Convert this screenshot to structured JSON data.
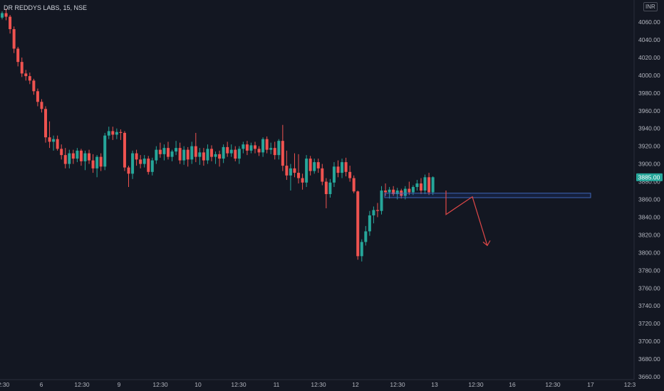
{
  "header": {
    "symbol": "DR REDDYS LABS",
    "interval": "15",
    "exchange": "NSE",
    "title": "DR REDDYS LABS, 15, NSE",
    "currency": "INR"
  },
  "colors": {
    "background": "#131722",
    "up": "#26a69a",
    "down": "#ef5350",
    "axis_text": "#b2b5be",
    "zone_border": "#3f64b8",
    "arrow": "#e04848"
  },
  "chart_data": {
    "type": "candlestick",
    "interval": "15",
    "yaxis": {
      "ticks": [
        3660,
        3680,
        3700,
        3720,
        3740,
        3760,
        3780,
        3800,
        3820,
        3840,
        3860,
        3880,
        3900,
        3920,
        3940,
        3960,
        3980,
        4000,
        4020,
        4040,
        4060
      ],
      "ylim": [
        3657,
        4082
      ]
    },
    "xaxis": {
      "tick_labels": [
        "2:30",
        "6",
        "12:30",
        "9",
        "12:30",
        "10",
        "12:30",
        "11",
        "12:30",
        "12",
        "12:30",
        "13",
        "12:30",
        "16",
        "12:30",
        "17",
        "12:3"
      ]
    },
    "last_price": {
      "label": "3885.00",
      "value": 3885
    },
    "support_zone": {
      "from": 3862,
      "to": 3867
    },
    "projection_path": [
      3870,
      3843,
      3863,
      3808
    ],
    "candles": [
      [
        4065,
        4072,
        4063,
        4070
      ],
      [
        4070,
        4075,
        4062,
        4066
      ],
      [
        4066,
        4068,
        4047,
        4052
      ],
      [
        4052,
        4055,
        4025,
        4030
      ],
      [
        4030,
        4032,
        4010,
        4015
      ],
      [
        4015,
        4020,
        3998,
        4002
      ],
      [
        4002,
        4006,
        3994,
        3999
      ],
      [
        3999,
        4003,
        3990,
        3994
      ],
      [
        3994,
        3996,
        3978,
        3982
      ],
      [
        3982,
        3985,
        3965,
        3970
      ],
      [
        3970,
        3973,
        3958,
        3962
      ],
      [
        3962,
        3965,
        3924,
        3930
      ],
      [
        3930,
        3948,
        3918,
        3925
      ],
      [
        3925,
        3932,
        3915,
        3928
      ],
      [
        3928,
        3932,
        3915,
        3917
      ],
      [
        3917,
        3922,
        3905,
        3910
      ],
      [
        3910,
        3918,
        3895,
        3900
      ],
      [
        3900,
        3916,
        3895,
        3912
      ],
      [
        3912,
        3916,
        3900,
        3906
      ],
      [
        3906,
        3918,
        3902,
        3915
      ],
      [
        3915,
        3917,
        3898,
        3903
      ],
      [
        3903,
        3915,
        3893,
        3912
      ],
      [
        3912,
        3916,
        3900,
        3904
      ],
      [
        3904,
        3911,
        3890,
        3895
      ],
      [
        3895,
        3910,
        3885,
        3908
      ],
      [
        3908,
        3912,
        3892,
        3897
      ],
      [
        3897,
        3935,
        3893,
        3932
      ],
      [
        3932,
        3942,
        3928,
        3937
      ],
      [
        3937,
        3942,
        3927,
        3933
      ],
      [
        3933,
        3940,
        3928,
        3936
      ],
      [
        3936,
        3939,
        3927,
        3935
      ],
      [
        3935,
        3937,
        3892,
        3896
      ],
      [
        3896,
        3898,
        3874,
        3889
      ],
      [
        3889,
        3915,
        3883,
        3912
      ],
      [
        3912,
        3916,
        3898,
        3905
      ],
      [
        3905,
        3910,
        3895,
        3900
      ],
      [
        3900,
        3910,
        3896,
        3906
      ],
      [
        3906,
        3909,
        3888,
        3891
      ],
      [
        3891,
        3907,
        3887,
        3904
      ],
      [
        3904,
        3920,
        3900,
        3916
      ],
      [
        3916,
        3924,
        3907,
        3911
      ],
      [
        3911,
        3922,
        3904,
        3918
      ],
      [
        3918,
        3925,
        3905,
        3908
      ],
      [
        3908,
        3916,
        3903,
        3914
      ],
      [
        3914,
        3926,
        3910,
        3918
      ],
      [
        3918,
        3924,
        3900,
        3904
      ],
      [
        3904,
        3920,
        3899,
        3916
      ],
      [
        3916,
        3919,
        3897,
        3905
      ],
      [
        3905,
        3925,
        3900,
        3920
      ],
      [
        3920,
        3935,
        3902,
        3908
      ],
      [
        3908,
        3918,
        3899,
        3913
      ],
      [
        3913,
        3918,
        3898,
        3904
      ],
      [
        3904,
        3922,
        3900,
        3917
      ],
      [
        3917,
        3921,
        3903,
        3908
      ],
      [
        3908,
        3914,
        3900,
        3911
      ],
      [
        3911,
        3915,
        3897,
        3906
      ],
      [
        3906,
        3922,
        3901,
        3919
      ],
      [
        3919,
        3925,
        3908,
        3912
      ],
      [
        3912,
        3922,
        3908,
        3916
      ],
      [
        3916,
        3920,
        3903,
        3906
      ],
      [
        3906,
        3920,
        3900,
        3917
      ],
      [
        3917,
        3925,
        3912,
        3922
      ],
      [
        3922,
        3926,
        3910,
        3915
      ],
      [
        3915,
        3924,
        3912,
        3921
      ],
      [
        3921,
        3925,
        3912,
        3917
      ],
      [
        3917,
        3920,
        3909,
        3913
      ],
      [
        3913,
        3930,
        3908,
        3928
      ],
      [
        3928,
        3931,
        3912,
        3916
      ],
      [
        3916,
        3924,
        3911,
        3918
      ],
      [
        3918,
        3925,
        3905,
        3910
      ],
      [
        3910,
        3928,
        3905,
        3926
      ],
      [
        3926,
        3944,
        3892,
        3898
      ],
      [
        3898,
        3915,
        3882,
        3887
      ],
      [
        3887,
        3900,
        3870,
        3895
      ],
      [
        3895,
        3912,
        3885,
        3890
      ],
      [
        3890,
        3911,
        3878,
        3884
      ],
      [
        3884,
        3889,
        3871,
        3879
      ],
      [
        3879,
        3910,
        3874,
        3906
      ],
      [
        3906,
        3909,
        3887,
        3892
      ],
      [
        3892,
        3906,
        3889,
        3902
      ],
      [
        3902,
        3906,
        3890,
        3895
      ],
      [
        3895,
        3900,
        3876,
        3880
      ],
      [
        3880,
        3884,
        3850,
        3866
      ],
      [
        3866,
        3883,
        3862,
        3879
      ],
      [
        3879,
        3902,
        3874,
        3897
      ],
      [
        3897,
        3904,
        3885,
        3890
      ],
      [
        3890,
        3906,
        3884,
        3902
      ],
      [
        3902,
        3907,
        3886,
        3891
      ],
      [
        3891,
        3898,
        3880,
        3884
      ],
      [
        3884,
        3887,
        3867,
        3869
      ],
      [
        3869,
        3870,
        3792,
        3796
      ],
      [
        3796,
        3815,
        3790,
        3812
      ],
      [
        3812,
        3830,
        3808,
        3824
      ],
      [
        3824,
        3847,
        3819,
        3842
      ],
      [
        3842,
        3852,
        3833,
        3848
      ],
      [
        3848,
        3856,
        3840,
        3847
      ],
      [
        3847,
        3875,
        3843,
        3870
      ],
      [
        3870,
        3878,
        3864,
        3868
      ],
      [
        3868,
        3874,
        3861,
        3871
      ],
      [
        3871,
        3875,
        3864,
        3866
      ],
      [
        3866,
        3873,
        3860,
        3870
      ],
      [
        3870,
        3872,
        3861,
        3864
      ],
      [
        3864,
        3875,
        3860,
        3872
      ],
      [
        3872,
        3880,
        3865,
        3868
      ],
      [
        3868,
        3876,
        3865,
        3874
      ],
      [
        3874,
        3882,
        3870,
        3878
      ],
      [
        3878,
        3884,
        3866,
        3870
      ],
      [
        3870,
        3888,
        3866,
        3885
      ],
      [
        3885,
        3890,
        3865,
        3868
      ],
      [
        3868,
        3886,
        3865,
        3885
      ]
    ]
  }
}
